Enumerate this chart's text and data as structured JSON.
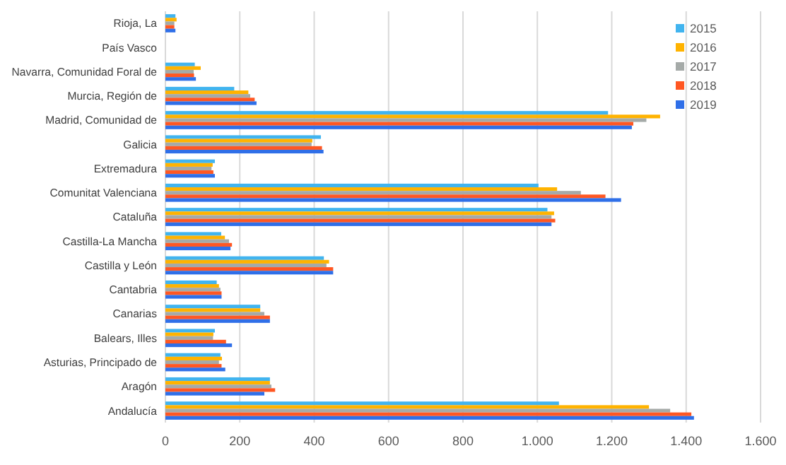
{
  "chart_data": {
    "type": "bar",
    "orientation": "horizontal",
    "categories": [
      "Rioja, La",
      "País Vasco",
      "Navarra, Comunidad Foral de",
      "Murcia, Región de",
      "Madrid, Comunidad de",
      "Galicia",
      "Extremadura",
      "Comunitat Valenciana",
      "Cataluña",
      "Castilla-La Mancha",
      "Castilla y León",
      "Cantabria",
      "Canarias",
      "Balears, Illes",
      "Asturias, Principado de",
      "Aragón",
      "Andalucía"
    ],
    "series": [
      {
        "name": "2015",
        "color": "#41b4ef",
        "values": [
          27,
          null,
          79,
          185,
          1190,
          418,
          133,
          1003,
          1027,
          150,
          426,
          138,
          255,
          133,
          148,
          281,
          1058
        ]
      },
      {
        "name": "2016",
        "color": "#ffb300",
        "values": [
          30,
          null,
          95,
          223,
          1330,
          395,
          127,
          1053,
          1045,
          160,
          440,
          144,
          255,
          129,
          152,
          281,
          1300
        ]
      },
      {
        "name": "2017",
        "color": "#a5aaa8",
        "values": [
          24,
          null,
          76,
          228,
          1293,
          393,
          124,
          1117,
          1038,
          171,
          433,
          148,
          266,
          128,
          144,
          285,
          1357
        ]
      },
      {
        "name": "2018",
        "color": "#ff5722",
        "values": [
          24,
          null,
          77,
          240,
          1258,
          421,
          129,
          1183,
          1048,
          179,
          451,
          151,
          281,
          163,
          151,
          295,
          1414
        ]
      },
      {
        "name": "2019",
        "color": "#2f6fe8",
        "values": [
          27,
          null,
          82,
          245,
          1254,
          425,
          133,
          1225,
          1038,
          175,
          451,
          151,
          281,
          179,
          161,
          266,
          1421
        ]
      }
    ],
    "xlim": [
      0,
      1600
    ],
    "xticks": [
      0,
      200,
      400,
      600,
      800,
      {
        "value": 1000,
        "label": "1.000"
      },
      {
        "value": 1200,
        "label": "1.200"
      },
      {
        "value": 1400,
        "label": "1.400"
      },
      {
        "value": 1600,
        "label": "1.600"
      }
    ],
    "grid": "x",
    "legend": "top right"
  }
}
